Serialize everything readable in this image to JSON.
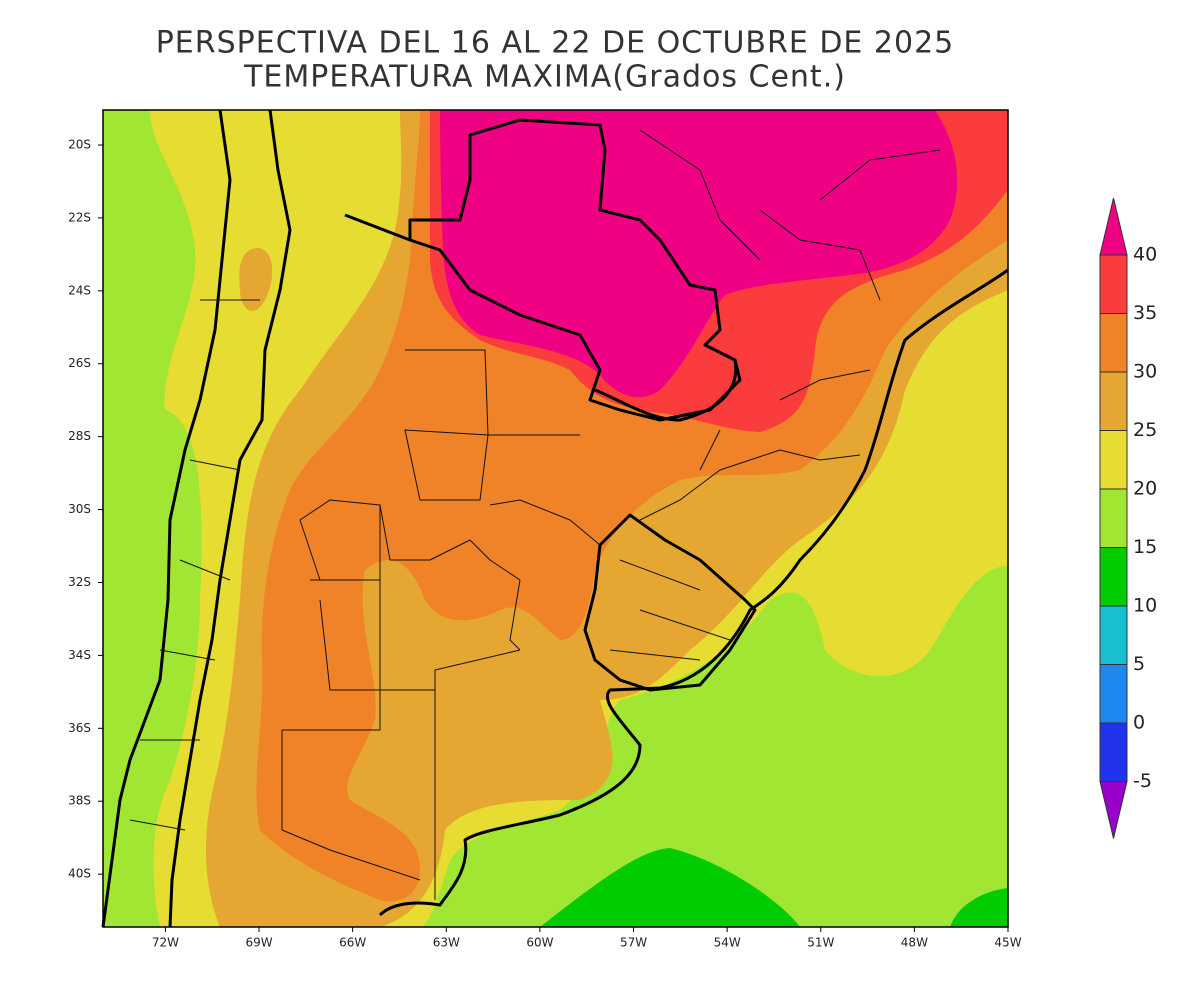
{
  "title": [
    "PERSPECTIVA DEL 16 AL 22 DE OCTUBRE DE 2025",
    "TEMPERATURA MAXIMA(Grados Cent.)"
  ],
  "lonlim": [
    74,
    45
  ],
  "latlim": [
    19.04,
    41.45
  ],
  "lat_ticks": [
    {
      "value": 20,
      "label": "20S"
    },
    {
      "value": 22,
      "label": "22S"
    },
    {
      "value": 24,
      "label": "24S"
    },
    {
      "value": 26,
      "label": "26S"
    },
    {
      "value": 28,
      "label": "28S"
    },
    {
      "value": 30,
      "label": "30S"
    },
    {
      "value": 32,
      "label": "32S"
    },
    {
      "value": 34,
      "label": "34S"
    },
    {
      "value": 36,
      "label": "36S"
    },
    {
      "value": 38,
      "label": "38S"
    },
    {
      "value": 40,
      "label": "40S"
    }
  ],
  "lon_ticks": [
    {
      "value": 72,
      "label": "72W"
    },
    {
      "value": 69,
      "label": "69W"
    },
    {
      "value": 66,
      "label": "66W"
    },
    {
      "value": 63,
      "label": "63W"
    },
    {
      "value": 60,
      "label": "60W"
    },
    {
      "value": 57,
      "label": "57W"
    },
    {
      "value": 54,
      "label": "54W"
    },
    {
      "value": 51,
      "label": "51W"
    },
    {
      "value": 48,
      "label": "48W"
    },
    {
      "value": 45,
      "label": "45W"
    }
  ],
  "colorbar": {
    "levels": [
      40,
      35,
      30,
      25,
      20,
      15,
      10,
      5,
      0,
      -5
    ],
    "colors": [
      "#f00082",
      "#fa3c3c",
      "#f08228",
      "#e6a632",
      "#e6dc32",
      "#a0e632",
      "#00cc00",
      "#16c0d0",
      "#1f88f0",
      "#2233ee",
      "#9900cc"
    ]
  }
}
